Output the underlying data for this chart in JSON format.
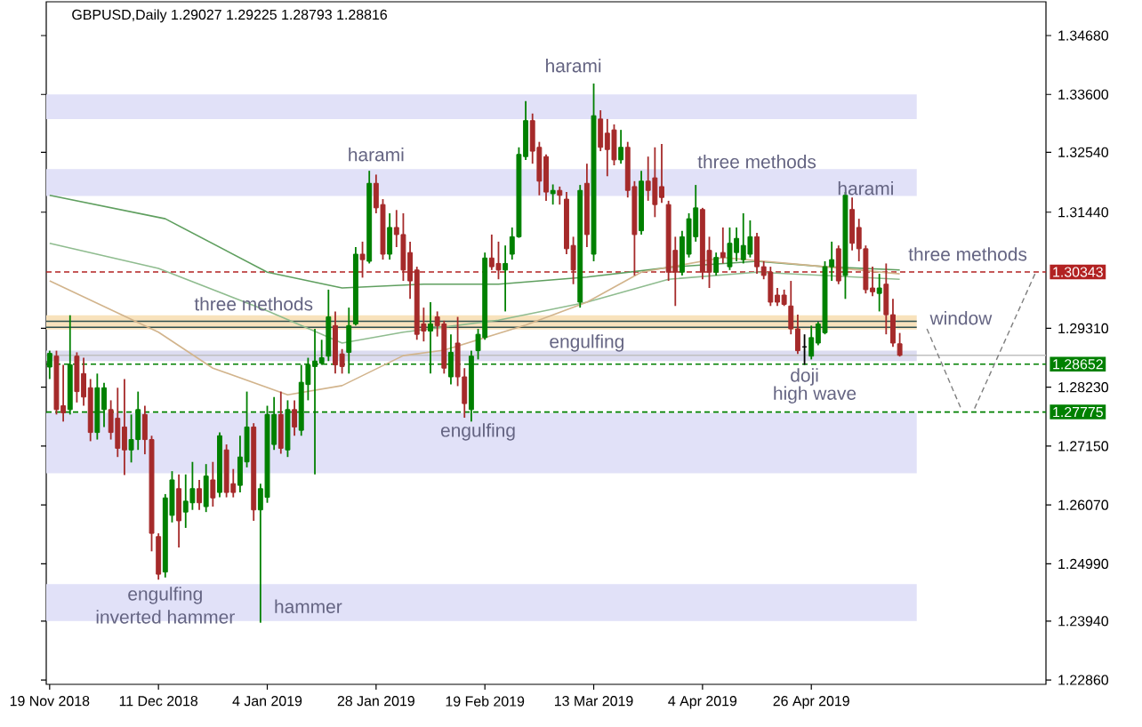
{
  "chart_data": {
    "type": "candlestick",
    "title": "GBPUSD,Daily 1.29027 1.29225 1.28793 1.28816",
    "categories": [
      "19 Nov 2018",
      null,
      null,
      null,
      null,
      null,
      null,
      null,
      null,
      null,
      null,
      null,
      null,
      null,
      null,
      null,
      "11 Dec 2018",
      null,
      null,
      null,
      null,
      null,
      null,
      null,
      null,
      null,
      null,
      null,
      null,
      null,
      null,
      null,
      "4 Jan 2019",
      null,
      null,
      null,
      null,
      null,
      null,
      null,
      null,
      null,
      null,
      null,
      null,
      null,
      null,
      null,
      "28 Jan 2019",
      null,
      null,
      null,
      null,
      null,
      null,
      null,
      null,
      null,
      null,
      null,
      null,
      null,
      null,
      null,
      "19 Feb 2019",
      null,
      null,
      null,
      null,
      null,
      null,
      null,
      null,
      null,
      null,
      null,
      null,
      null,
      null,
      null,
      "13 Mar 2019",
      null,
      null,
      null,
      null,
      null,
      null,
      null,
      null,
      null,
      null,
      null,
      null,
      null,
      null,
      null,
      "4 Apr 2019",
      null,
      null,
      null,
      null,
      null,
      null,
      null,
      null,
      null,
      null,
      null,
      null,
      null,
      null,
      null,
      "26 Apr 2019",
      null,
      null,
      null,
      null,
      null,
      null,
      null,
      null,
      null,
      null,
      null,
      null,
      null,
      null,
      null,
      null,
      null,
      null,
      null,
      null,
      null,
      null,
      null,
      null,
      null,
      null,
      null,
      null,
      null,
      null,
      null,
      null,
      null,
      null
    ],
    "ohlc": [
      [
        1.286,
        1.289,
        1.2838,
        1.2885
      ],
      [
        1.288,
        1.289,
        1.2773,
        1.2782
      ],
      [
        1.2789,
        1.2864,
        1.276,
        1.2776
      ],
      [
        1.2782,
        1.2955,
        1.2773,
        1.2864
      ],
      [
        1.288,
        1.2887,
        1.2795,
        1.2815
      ],
      [
        1.2848,
        1.2877,
        1.2789,
        1.2805
      ],
      [
        1.2822,
        1.2838,
        1.2724,
        1.274
      ],
      [
        1.274,
        1.2848,
        1.2727,
        1.2822
      ],
      [
        1.2782,
        1.2831,
        1.275,
        1.2822
      ],
      [
        1.2782,
        1.2799,
        1.2727,
        1.274
      ],
      [
        1.2766,
        1.2822,
        1.2695,
        1.2711
      ],
      [
        1.275,
        1.2838,
        1.2662,
        1.2708
      ],
      [
        1.2708,
        1.2773,
        1.2685,
        1.2727
      ],
      [
        1.2727,
        1.2815,
        1.2708,
        1.2782
      ],
      [
        1.2773,
        1.2789,
        1.27,
        1.2727
      ],
      [
        1.2727,
        1.2734,
        1.2522,
        1.2555
      ],
      [
        1.2549,
        1.2555,
        1.247,
        1.248
      ],
      [
        1.2484,
        1.2627,
        1.2474,
        1.262
      ],
      [
        1.2588,
        1.2669,
        1.2575,
        1.2653
      ],
      [
        1.2637,
        1.2663,
        1.2529,
        1.2578
      ],
      [
        1.2594,
        1.2663,
        1.2565,
        1.2614
      ],
      [
        1.2611,
        1.2686,
        1.2598,
        1.2637
      ],
      [
        1.2637,
        1.2653,
        1.2598,
        1.2611
      ],
      [
        1.2604,
        1.2682,
        1.2594,
        1.266
      ],
      [
        1.2653,
        1.2686,
        1.2604,
        1.262
      ],
      [
        1.263,
        1.274,
        1.2621,
        1.2734
      ],
      [
        1.2708,
        1.2718,
        1.2621,
        1.263
      ],
      [
        1.2646,
        1.2673,
        1.2621,
        1.263
      ],
      [
        1.2643,
        1.2734,
        1.263,
        1.2695
      ],
      [
        1.2686,
        1.2815,
        1.2676,
        1.275
      ],
      [
        1.275,
        1.2757,
        1.2578,
        1.2598
      ],
      [
        1.2598,
        1.2646,
        1.2391,
        1.2637
      ],
      [
        1.2621,
        1.2789,
        1.2611,
        1.2773
      ],
      [
        1.2718,
        1.2805,
        1.2708,
        1.2773
      ],
      [
        1.2773,
        1.2815,
        1.2701,
        1.2711
      ],
      [
        1.2708,
        1.2799,
        1.2695,
        1.2782
      ],
      [
        1.2782,
        1.2799,
        1.2734,
        1.275
      ],
      [
        1.2744,
        1.2864,
        1.2734,
        1.2832
      ],
      [
        1.2828,
        1.2877,
        1.2799,
        1.2864
      ],
      [
        1.2861,
        1.293,
        1.2663,
        1.2871
      ],
      [
        1.2867,
        1.291,
        1.2864,
        1.2877
      ],
      [
        1.288,
        1.3002,
        1.2871,
        1.2952
      ],
      [
        1.2936,
        1.2962,
        1.2848,
        1.2864
      ],
      [
        1.2884,
        1.2893,
        1.2848,
        1.2861
      ],
      [
        1.2887,
        1.2969,
        1.2848,
        1.2936
      ],
      [
        1.2939,
        1.308,
        1.2936,
        1.3067
      ],
      [
        1.3067,
        1.309,
        1.3024,
        1.3057
      ],
      [
        1.3054,
        1.322,
        1.305,
        1.3197
      ],
      [
        1.3197,
        1.3213,
        1.3142,
        1.3152
      ],
      [
        1.3158,
        1.3168,
        1.3057,
        1.3067
      ],
      [
        1.3067,
        1.3142,
        1.3057,
        1.3116
      ],
      [
        1.3116,
        1.3148,
        1.308,
        1.3103
      ],
      [
        1.3103,
        1.3142,
        1.3018,
        1.3038
      ],
      [
        1.307,
        1.309,
        1.2985,
        1.3018
      ],
      [
        1.3038,
        1.3044,
        1.291,
        1.292
      ],
      [
        1.2939,
        1.2969,
        1.2907,
        1.2926
      ],
      [
        1.2926,
        1.2979,
        1.2848,
        1.2939
      ],
      [
        1.2952,
        1.2962,
        1.2916,
        1.2936
      ],
      [
        1.2939,
        1.2945,
        1.2848,
        1.2858
      ],
      [
        1.2842,
        1.292,
        1.2828,
        1.2887
      ],
      [
        1.2904,
        1.2952,
        1.2825,
        1.2842
      ],
      [
        1.2842,
        1.2858,
        1.2767,
        1.2793
      ],
      [
        1.2782,
        1.289,
        1.276,
        1.288
      ],
      [
        1.289,
        1.293,
        1.2874,
        1.292
      ],
      [
        1.2914,
        1.307,
        1.291,
        1.306
      ],
      [
        1.306,
        1.3103,
        1.3038,
        1.3044
      ],
      [
        1.305,
        1.309,
        1.3021,
        1.3038
      ],
      [
        1.3038,
        1.3083,
        1.2962,
        1.305
      ],
      [
        1.3067,
        1.3116,
        1.3057,
        1.3099
      ],
      [
        1.3099,
        1.3263,
        1.3097,
        1.325
      ],
      [
        1.3246,
        1.3348,
        1.324,
        1.3312
      ],
      [
        1.3312,
        1.3325,
        1.3233,
        1.3256
      ],
      [
        1.3263,
        1.3273,
        1.3175,
        1.3201
      ],
      [
        1.3246,
        1.325,
        1.3165,
        1.3181
      ],
      [
        1.3178,
        1.3195,
        1.3158,
        1.3184
      ],
      [
        1.3184,
        1.3191,
        1.3158,
        1.3175
      ],
      [
        1.3168,
        1.3181,
        1.3067,
        1.3077
      ],
      [
        1.3083,
        1.3099,
        1.3012,
        1.3038
      ],
      [
        1.2979,
        1.3194,
        1.2969,
        1.3184
      ],
      [
        1.3197,
        1.3233,
        1.308,
        1.3103
      ],
      [
        1.3067,
        1.338,
        1.3054,
        1.3321
      ],
      [
        1.3315,
        1.3331,
        1.3256,
        1.3263
      ],
      [
        1.3289,
        1.3315,
        1.321,
        1.3259
      ],
      [
        1.3295,
        1.3305,
        1.323,
        1.324
      ],
      [
        1.324,
        1.3295,
        1.3233,
        1.3263
      ],
      [
        1.3263,
        1.3273,
        1.3171,
        1.3184
      ],
      [
        1.3191,
        1.3201,
        1.3028,
        1.3103
      ],
      [
        1.311,
        1.322,
        1.3103,
        1.3201
      ],
      [
        1.3201,
        1.3246,
        1.3165,
        1.3184
      ],
      [
        1.3207,
        1.3263,
        1.3135,
        1.3158
      ],
      [
        1.3191,
        1.3269,
        1.3161,
        1.3171
      ],
      [
        1.3158,
        1.3165,
        1.3018,
        1.3034
      ],
      [
        1.3074,
        1.3099,
        1.2972,
        1.3034
      ],
      [
        1.3034,
        1.311,
        1.3028,
        1.3099
      ],
      [
        1.3067,
        1.3142,
        1.3061,
        1.3132
      ],
      [
        1.3099,
        1.3194,
        1.309,
        1.3152
      ],
      [
        1.3149,
        1.3152,
        1.3021,
        1.3034
      ],
      [
        1.3074,
        1.3099,
        1.3005,
        1.3034
      ],
      [
        1.3034,
        1.307,
        1.3028,
        1.3061
      ],
      [
        1.307,
        1.3116,
        1.305,
        1.3061
      ],
      [
        1.3044,
        1.3116,
        1.3038,
        1.3087
      ],
      [
        1.307,
        1.3116,
        1.3054,
        1.3096
      ],
      [
        1.3057,
        1.3142,
        1.305,
        1.3083
      ],
      [
        1.3067,
        1.3129,
        1.3061,
        1.3099
      ],
      [
        1.3099,
        1.3106,
        1.3031,
        1.3044
      ],
      [
        1.3044,
        1.3054,
        1.3021,
        1.3028
      ],
      [
        1.3034,
        1.3044,
        1.2972,
        1.2979
      ],
      [
        1.2992,
        1.3005,
        1.2972,
        1.2979
      ],
      [
        1.2992,
        1.3002,
        1.2972,
        1.2975
      ],
      [
        1.2972,
        1.3018,
        1.292,
        1.293
      ],
      [
        1.293,
        1.2956,
        1.2884,
        1.289
      ],
      [
        1.2897,
        1.292,
        1.2864,
        1.2897
      ],
      [
        1.288,
        1.2936,
        1.2874,
        1.2914
      ],
      [
        1.2904,
        1.2943,
        1.29,
        1.2939
      ],
      [
        1.2923,
        1.3054,
        1.292,
        1.3044
      ],
      [
        1.3044,
        1.309,
        1.3018,
        1.3057
      ],
      [
        1.3077,
        1.3083,
        1.3012,
        1.3018
      ],
      [
        1.3028,
        1.3181,
        1.2985,
        1.3175
      ],
      [
        1.3149,
        1.3171,
        1.3074,
        1.3087
      ],
      [
        1.3116,
        1.3132,
        1.3054,
        1.3077
      ],
      [
        1.3077,
        1.3083,
        1.2995,
        1.3002
      ],
      [
        1.3005,
        1.3044,
        1.299,
        1.2998
      ],
      [
        1.2995,
        1.3031,
        1.2962,
        1.3005
      ],
      [
        1.3012,
        1.305,
        1.292,
        1.2956
      ],
      [
        1.2956,
        1.2985,
        1.2897,
        1.2904
      ],
      [
        1.29027,
        1.29225,
        1.28793,
        1.28816
      ],
      null,
      null,
      null,
      null,
      null,
      null,
      null,
      null,
      null,
      null,
      null,
      null,
      null,
      null,
      null,
      null,
      null,
      null,
      null,
      null,
      null
    ],
    "colors": [
      "#008000",
      "#a52a2a",
      "#a52a2a",
      "#008000",
      "#a52a2a",
      "#a52a2a",
      "#a52a2a",
      "#008000",
      "#008000",
      "#a52a2a",
      "#a52a2a",
      "#a52a2a",
      "#008000",
      "#008000",
      "#a52a2a",
      "#a52a2a",
      "#a52a2a",
      "#008000",
      "#008000",
      "#a52a2a",
      "#008000",
      "#008000",
      "#a52a2a",
      "#008000",
      "#a52a2a",
      "#008000",
      "#a52a2a",
      "#a52a2a",
      "#008000",
      "#008000",
      "#a52a2a",
      "#008000",
      "#008000",
      "#008000",
      "#a52a2a",
      "#008000",
      "#a52a2a",
      "#008000",
      "#008000",
      "#008000",
      "#008000",
      "#008000",
      "#a52a2a",
      "#a52a2a",
      "#008000",
      "#008000",
      "#a52a2a",
      "#008000",
      "#a52a2a",
      "#a52a2a",
      "#008000",
      "#a52a2a",
      "#a52a2a",
      "#a52a2a",
      "#a52a2a",
      "#a52a2a",
      "#008000",
      "#a52a2a",
      "#a52a2a",
      "#008000",
      "#a52a2a",
      "#a52a2a",
      "#008000",
      "#008000",
      "#008000",
      "#a52a2a",
      "#a52a2a",
      "#008000",
      "#008000",
      "#008000",
      "#008000",
      "#a52a2a",
      "#a52a2a",
      "#a52a2a",
      "#008000",
      "#a52a2a",
      "#a52a2a",
      "#a52a2a",
      "#008000",
      "#a52a2a",
      "#008000",
      "#a52a2a",
      "#a52a2a",
      "#a52a2a",
      "#008000",
      "#a52a2a",
      "#a52a2a",
      "#008000",
      "#a52a2a",
      "#a52a2a",
      "#a52a2a",
      "#a52a2a",
      "#a52a2a",
      "#008000",
      "#008000",
      "#008000",
      "#a52a2a",
      "#a52a2a",
      "#008000",
      "#a52a2a",
      "#008000",
      "#008000",
      "#008000",
      "#008000",
      "#a52a2a",
      "#a52a2a",
      "#a52a2a",
      "#a52a2a",
      "#a52a2a",
      "#a52a2a",
      "#a52a2a",
      "#000000",
      "#008000",
      "#008000",
      "#008000",
      "#008000",
      "#a52a2a",
      "#008000",
      "#a52a2a",
      "#a52a2a",
      "#a52a2a",
      "#a52a2a",
      "#008000",
      "#a52a2a",
      "#a52a2a",
      "#a52a2a",
      null,
      null,
      null,
      null,
      null,
      null,
      null,
      null,
      null,
      null,
      null,
      null,
      null,
      null,
      null,
      null,
      null,
      null,
      null,
      null,
      null
    ],
    "series": [
      {
        "type": "line",
        "color": "#5f9f5f",
        "values": [
          1.3175,
          null,
          null,
          null,
          null,
          null,
          null,
          null,
          null,
          null,
          null,
          null,
          null,
          null,
          null,
          null,
          null,
          1.3132,
          null,
          null,
          null,
          null,
          null,
          null,
          null,
          null,
          null,
          null,
          null,
          null,
          null,
          null,
          1.3034,
          null,
          null,
          null,
          null,
          null,
          null,
          null,
          null,
          null,
          null,
          1.3005,
          null,
          null,
          null,
          null,
          null,
          null,
          null,
          null,
          null,
          null,
          null,
          1.3012,
          null,
          null,
          null,
          null,
          null,
          null,
          null,
          null,
          null,
          null,
          1.3012,
          null,
          null,
          null,
          null,
          null,
          null,
          null,
          null,
          null,
          null,
          null,
          null,
          1.3025,
          null,
          null,
          null,
          null,
          null,
          null,
          null,
          null,
          null,
          null,
          null,
          null,
          1.3044,
          null,
          null,
          null,
          null,
          null,
          null,
          null,
          null,
          null,
          null,
          null,
          1.3054,
          null,
          null,
          null,
          null,
          null,
          null,
          null,
          null,
          null,
          1.3044,
          null,
          null,
          null,
          null,
          null,
          null,
          null,
          null,
          null,
          null,
          1.3038,
          null,
          null,
          null,
          null,
          null,
          null,
          null,
          null,
          null,
          null,
          null,
          null,
          null,
          null,
          null,
          null,
          null,
          null,
          null,
          null,
          null
        ]
      },
      {
        "type": "line",
        "color": "#8fbc8f",
        "values": [
          1.3087,
          null,
          null,
          null,
          null,
          null,
          null,
          null,
          null,
          null,
          null,
          null,
          null,
          null,
          null,
          null,
          1.3041,
          null,
          null,
          null,
          null,
          null,
          null,
          null,
          null,
          null,
          null,
          null,
          null,
          null,
          null,
          null,
          1.2963,
          null,
          null,
          null,
          null,
          null,
          null,
          null,
          null,
          null,
          null,
          1.2904,
          null,
          null,
          null,
          null,
          null,
          null,
          null,
          null,
          1.2924,
          null,
          null,
          null,
          null,
          null,
          null,
          null,
          null,
          null,
          null,
          null,
          null,
          null,
          1.2946,
          null,
          null,
          null,
          null,
          null,
          null,
          null,
          null,
          null,
          null,
          null,
          null,
          1.2979,
          null,
          null,
          null,
          null,
          null,
          null,
          null,
          null,
          null,
          null,
          null,
          1.3021,
          null,
          null,
          null,
          null,
          null,
          null,
          null,
          null,
          null,
          null,
          null,
          null,
          1.3034,
          null,
          null,
          null,
          null,
          null,
          null,
          null,
          null,
          null,
          1.3028,
          null,
          null,
          null,
          null,
          null,
          null,
          null,
          null,
          null,
          null,
          1.3021,
          null,
          null,
          null,
          null,
          null,
          null,
          null,
          null,
          null,
          null,
          null,
          null,
          null,
          null,
          null,
          null,
          null,
          null,
          null,
          null,
          null
        ]
      },
      {
        "type": "line",
        "color": "#d2b48c",
        "values": [
          1.3018,
          null,
          null,
          null,
          null,
          null,
          null,
          null,
          null,
          null,
          null,
          null,
          null,
          null,
          null,
          null,
          1.2924,
          null,
          null,
          null,
          null,
          null,
          null,
          null,
          1.2858,
          null,
          null,
          null,
          null,
          null,
          null,
          null,
          null,
          null,
          null,
          1.2809,
          null,
          null,
          null,
          null,
          null,
          null,
          null,
          1.2826,
          null,
          null,
          null,
          null,
          null,
          null,
          null,
          null,
          1.2881,
          null,
          null,
          null,
          null,
          null,
          1.2891,
          null,
          null,
          null,
          null,
          null,
          null,
          null,
          null,
          null,
          null,
          null,
          1.2937,
          null,
          null,
          null,
          null,
          null,
          null,
          null,
          null,
          1.2979,
          null,
          null,
          null,
          null,
          null,
          null,
          null,
          1.3034,
          null,
          null,
          null,
          null,
          null,
          null,
          null,
          null,
          null,
          null,
          null,
          1.3061,
          null,
          null,
          null,
          null,
          null,
          null,
          null,
          null,
          null,
          null,
          null,
          null,
          null,
          null,
          1.3044,
          null,
          null,
          null,
          null,
          null,
          null,
          null,
          null,
          null,
          null,
          1.3031,
          null,
          null,
          null,
          null,
          null,
          null,
          null,
          null,
          null,
          null,
          null,
          null,
          null,
          null,
          null,
          null,
          null,
          null,
          null,
          null,
          null
        ]
      }
    ],
    "ylim": [
      1.2278,
      1.353
    ],
    "yticks": [
      {
        "value": 1.3468,
        "label": "1.34680"
      },
      {
        "value": 1.336,
        "label": "1.33600"
      },
      {
        "value": 1.3254,
        "label": "1.32540"
      },
      {
        "value": 1.3144,
        "label": "1.31440"
      },
      {
        "value": 1.2931,
        "label": "1.29310"
      },
      {
        "value": 1.2823,
        "label": "1.28230"
      },
      {
        "value": 1.2715,
        "label": "1.27150"
      },
      {
        "value": 1.2607,
        "label": "1.26070"
      },
      {
        "value": 1.2499,
        "label": "1.24990"
      },
      {
        "value": 1.2394,
        "label": "1.23940"
      },
      {
        "value": 1.2286,
        "label": "1.22860"
      }
    ],
    "bands": [
      {
        "axis": "y",
        "from": 1.3315,
        "to": 1.336,
        "color": "#e1e1f8"
      },
      {
        "axis": "y",
        "from": 1.3174,
        "to": 1.3223,
        "color": "#e1e1f8"
      },
      {
        "axis": "y",
        "from": 1.2929,
        "to": 1.2955,
        "color": "#f8e2bc"
      },
      {
        "axis": "y",
        "from": 1.2871,
        "to": 1.289,
        "color": "#dcdcf0"
      },
      {
        "axis": "y",
        "from": 1.2665,
        "to": 1.2776,
        "color": "#e1e1f8"
      },
      {
        "axis": "y",
        "from": 1.2394,
        "to": 1.2462,
        "color": "#e1e1f8"
      }
    ],
    "ref_lines": [
      {
        "axis": "y",
        "value": 1.30343,
        "label": "1.30343",
        "color": "#b22222",
        "line_style": "dashed"
      },
      {
        "axis": "y",
        "value": 1.28652,
        "label": "1.28652",
        "color": "#008000",
        "line_style": "dashed"
      },
      {
        "axis": "y",
        "value": 1.27775,
        "label": "1.27775",
        "color": "#008000",
        "line_style": "dashed"
      },
      {
        "axis": "y",
        "value": 1.28816,
        "color": "#c0c0c0",
        "line_style": "solid"
      },
      {
        "axis": "y",
        "value": 1.2944,
        "color": "#2f4f4f",
        "line_style": "solid"
      },
      {
        "axis": "y",
        "value": 1.2933,
        "color": "#2f4f4f",
        "line_style": "solid"
      }
    ],
    "annotations": [
      "harami",
      "harami",
      "three methods",
      "harami",
      {
        "text": "three methods",
        "y": 1.30343
      },
      "three methods",
      "engulfing",
      {
        "text": "window",
        "y": 1.27775
      },
      "doji",
      "high wave",
      "engulfing",
      "engulfing",
      "inverted hammer",
      "hammer"
    ]
  }
}
